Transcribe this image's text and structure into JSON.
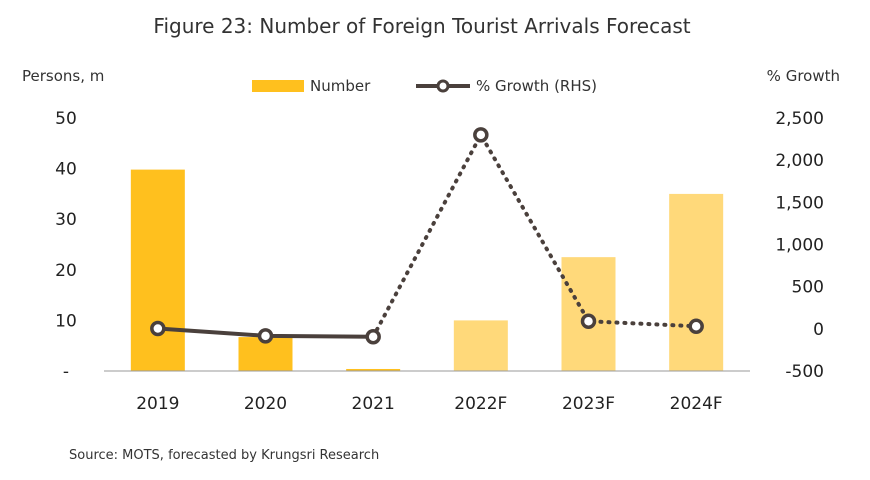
{
  "chart_data": {
    "type": "bar",
    "title": "Figure 23: Number of Foreign Tourist Arrivals Forecast",
    "categories": [
      "2019",
      "2020",
      "2021",
      "2022F",
      "2023F",
      "2024F"
    ],
    "y_left": {
      "label": "Persons, m",
      "min": 0,
      "max": 50,
      "ticks": [
        0,
        10,
        20,
        30,
        40,
        50
      ],
      "tick_labels": [
        "-",
        "10",
        "20",
        "30",
        "40",
        "50"
      ]
    },
    "y_right": {
      "label": "% Growth",
      "min": -500,
      "max": 2500,
      "ticks": [
        -500,
        0,
        500,
        1000,
        1500,
        2000,
        2500
      ],
      "tick_labels": [
        "-500",
        "0",
        "500",
        "1,000",
        "1,500",
        "2,000",
        "2,500"
      ]
    },
    "series": [
      {
        "name": "Number",
        "kind": "bar",
        "axis": "left",
        "values": [
          39.8,
          6.7,
          0.4,
          10.0,
          22.5,
          35.0
        ],
        "colors": [
          "#ffc01e",
          "#ffc01e",
          "#ffc01e",
          "#ffd97a",
          "#ffd97a",
          "#ffd97a"
        ]
      },
      {
        "name": "% Growth (RHS)",
        "kind": "line",
        "axis": "right",
        "values": [
          4,
          -83,
          -94,
          2300,
          90,
          30
        ],
        "dashed_from_index": 2,
        "color": "#4a403c"
      }
    ],
    "legend_position": "top-center",
    "grid": false,
    "source": "Source: MOTS, forecasted by Krungsri Research"
  }
}
